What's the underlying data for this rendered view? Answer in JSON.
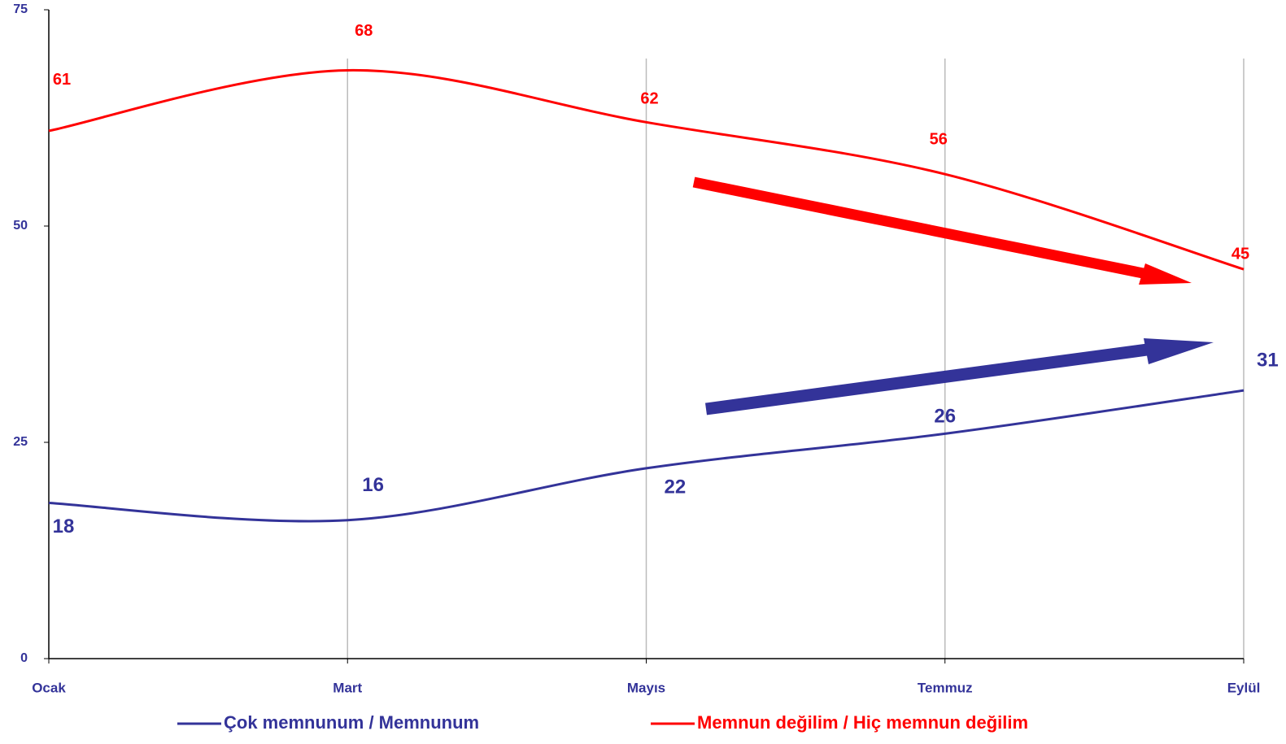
{
  "chart_data": {
    "type": "line",
    "categories": [
      "Ocak",
      "Mart",
      "Mayıs",
      "Temmuz",
      "Eylül"
    ],
    "series": [
      {
        "name": "Çok memnunum / Memnunum",
        "color": "#333399",
        "values": [
          18,
          16,
          22,
          26,
          31
        ]
      },
      {
        "name": "Memnun değilim / Hiç memnun değilim",
        "color": "#ff0000",
        "values": [
          61,
          68,
          62,
          56,
          45
        ]
      }
    ],
    "ylim": [
      0,
      75
    ],
    "yticks": [
      0,
      25,
      50,
      75
    ],
    "grid": true,
    "legend": "bottom"
  }
}
